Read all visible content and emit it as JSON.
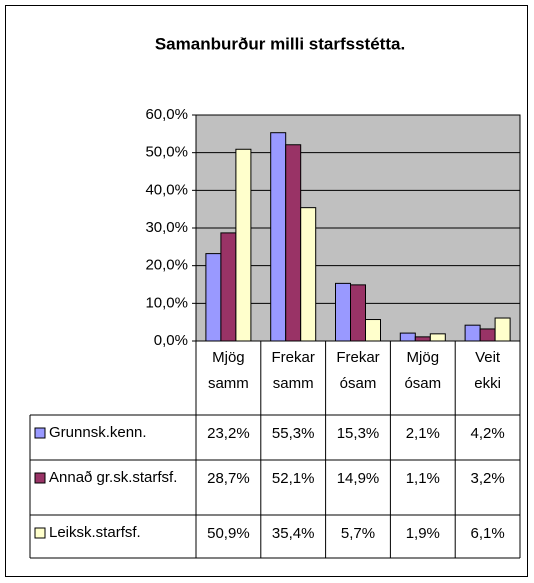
{
  "chart_data": {
    "type": "bar",
    "title": "Samanburður milli starfsstétta.",
    "categories": [
      "Mjög samm",
      "Frekar samm",
      "Frekar ósam",
      "Mjög ósam",
      "Veit ekki"
    ],
    "series": [
      {
        "name": "Grunnsk.kenn.",
        "color": "#9999ff",
        "values": [
          23.2,
          55.3,
          15.3,
          2.1,
          4.2
        ],
        "value_labels": [
          "23,2%",
          "55,3%",
          "15,3%",
          "2,1%",
          "4,2%"
        ]
      },
      {
        "name": "Annað gr.sk.starfsf.",
        "color": "#993366",
        "values": [
          28.7,
          52.1,
          14.9,
          1.1,
          3.2
        ],
        "value_labels": [
          "28,7%",
          "52,1%",
          "14,9%",
          "1,1%",
          "3,2%"
        ]
      },
      {
        "name": "Leiksk.starfsf.",
        "color": "#ffffcc",
        "values": [
          50.9,
          35.4,
          5.7,
          1.9,
          6.1
        ],
        "value_labels": [
          "50,9%",
          "35,4%",
          "5,7%",
          "1,9%",
          "6,1%"
        ]
      }
    ],
    "ylim": [
      0,
      60
    ],
    "yticks": [
      {
        "value": 0,
        "label": "0,0%"
      },
      {
        "value": 10,
        "label": "10,0%"
      },
      {
        "value": 20,
        "label": "20,0%"
      },
      {
        "value": 30,
        "label": "30,0%"
      },
      {
        "value": 40,
        "label": "40,0%"
      },
      {
        "value": 50,
        "label": "50,0%"
      },
      {
        "value": 60,
        "label": "60,0%"
      }
    ],
    "grid": true
  }
}
